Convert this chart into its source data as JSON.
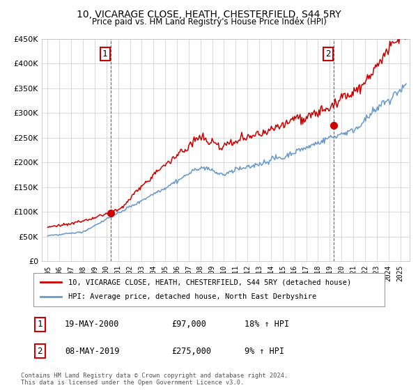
{
  "title1": "10, VICARAGE CLOSE, HEATH, CHESTERFIELD, S44 5RY",
  "title2": "Price paid vs. HM Land Registry's House Price Index (HPI)",
  "legend_line1": "10, VICARAGE CLOSE, HEATH, CHESTERFIELD, S44 5RY (detached house)",
  "legend_line2": "HPI: Average price, detached house, North East Derbyshire",
  "transaction1_label": "1",
  "transaction1_date": "19-MAY-2000",
  "transaction1_price": "£97,000",
  "transaction1_hpi": "18% ↑ HPI",
  "transaction2_label": "2",
  "transaction2_date": "08-MAY-2019",
  "transaction2_price": "£275,000",
  "transaction2_hpi": "9% ↑ HPI",
  "footnote": "Contains HM Land Registry data © Crown copyright and database right 2024.\nThis data is licensed under the Open Government Licence v3.0.",
  "ylim": [
    0,
    450000
  ],
  "yticks": [
    0,
    50000,
    100000,
    150000,
    200000,
    250000,
    300000,
    350000,
    400000,
    450000
  ],
  "line1_color": "#cc0000",
  "line2_color": "#6699cc",
  "marker1_date": 2000.38,
  "marker1_value": 97000,
  "marker2_date": 2019.36,
  "marker2_value": 275000,
  "vline1_date": 2000.38,
  "vline2_date": 2019.36,
  "background_color": "#ffffff",
  "xlim_left": 1994.5,
  "xlim_right": 2025.8
}
